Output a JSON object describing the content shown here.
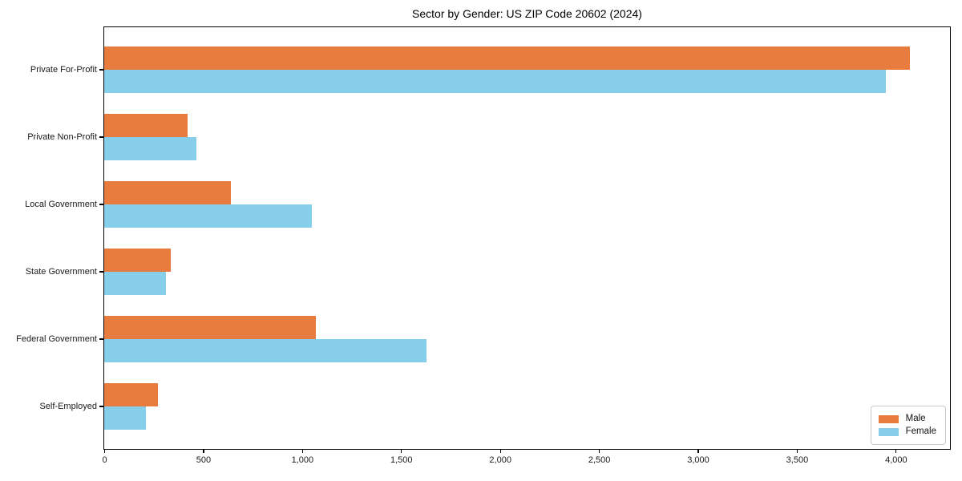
{
  "chart_data": {
    "type": "bar",
    "orientation": "horizontal",
    "title": "Sector by Gender: US ZIP Code 20602 (2024)",
    "categories": [
      "Private For-Profit",
      "Private Non-Profit",
      "Local Government",
      "State Government",
      "Federal Government",
      "Self-Employed"
    ],
    "series": [
      {
        "name": "Male",
        "color": "#e87c3e",
        "values": [
          4070,
          420,
          640,
          335,
          1070,
          270
        ]
      },
      {
        "name": "Female",
        "color": "#87ceeb",
        "values": [
          3950,
          465,
          1050,
          310,
          1630,
          210
        ]
      }
    ],
    "xlabel": "",
    "ylabel": "",
    "xlim": [
      0,
      4270
    ],
    "xticks": [
      {
        "value": 0,
        "label": "0"
      },
      {
        "value": 500,
        "label": "500"
      },
      {
        "value": 1000,
        "label": "1,000"
      },
      {
        "value": 1500,
        "label": "1,500"
      },
      {
        "value": 2000,
        "label": "2,000"
      },
      {
        "value": 2500,
        "label": "2,500"
      },
      {
        "value": 3000,
        "label": "3,000"
      },
      {
        "value": 3500,
        "label": "3,500"
      },
      {
        "value": 4000,
        "label": "4,000"
      }
    ],
    "grid": false,
    "legend_position": "lower right",
    "axis_color": "#000000",
    "background_color": "#ffffff"
  }
}
